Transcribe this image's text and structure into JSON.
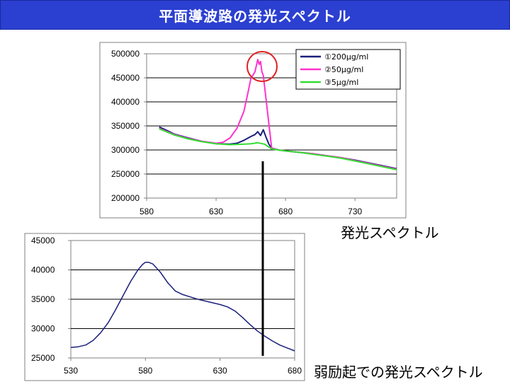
{
  "slide": {
    "title": "平面導波路の発光スペクトル",
    "caption_top": "発光スペクトル",
    "caption_bottom": "弱励起での発光スペクトル"
  },
  "colors": {
    "title_bg": "#2b3fd1",
    "series_200": "#1a1f7a",
    "series_50": "#ff33cc",
    "series_5": "#33dd33",
    "highlight_circle": "#e02020",
    "lower_line": "#1a1f7a"
  },
  "chart_data": [
    {
      "type": "line",
      "xlim": [
        580,
        760
      ],
      "ylim": [
        200000,
        500000
      ],
      "x_ticks": [
        "580",
        "630",
        "680",
        "730"
      ],
      "x_tick_values": [
        580,
        630,
        680,
        730
      ],
      "y_ticks": [
        "500000",
        "450000",
        "400000",
        "350000",
        "300000",
        "250000",
        "200000"
      ],
      "y_tick_values": [
        500000,
        450000,
        400000,
        350000,
        300000,
        250000,
        200000
      ],
      "grid": true,
      "legend_position": "top-right",
      "annotation": "red circle around peak at ~660",
      "series": [
        {
          "name": "①200μg/ml",
          "color_key": "series_200",
          "x": [
            589,
            595,
            600,
            610,
            620,
            630,
            640,
            645,
            650,
            655,
            658,
            660,
            662,
            664,
            665,
            666,
            668,
            670,
            675,
            680,
            690,
            700,
            710,
            720,
            730,
            740,
            750,
            760
          ],
          "y": [
            348000,
            340000,
            333000,
            325000,
            318000,
            313000,
            312000,
            314000,
            320000,
            328000,
            332000,
            338000,
            330000,
            342000,
            334000,
            326000,
            312000,
            304000,
            300000,
            298000,
            295000,
            292000,
            288000,
            284000,
            279000,
            273000,
            267000,
            261000
          ]
        },
        {
          "name": "②50μg/ml",
          "color_key": "series_50",
          "x": [
            589,
            600,
            610,
            620,
            630,
            635,
            640,
            645,
            650,
            653,
            655,
            658,
            660,
            661,
            662,
            663,
            664,
            665,
            667,
            670,
            675,
            680,
            690,
            700,
            710,
            720,
            730,
            740,
            750,
            760
          ],
          "y": [
            345000,
            332000,
            324000,
            318000,
            314000,
            316000,
            325000,
            345000,
            380000,
            420000,
            448000,
            463000,
            488000,
            478000,
            484000,
            462000,
            455000,
            430000,
            380000,
            304000,
            300000,
            298000,
            295000,
            292000,
            288000,
            284000,
            278000,
            272000,
            266000,
            260000
          ]
        },
        {
          "name": "③5μg/ml",
          "color_key": "series_5",
          "x": [
            589,
            600,
            610,
            620,
            630,
            640,
            650,
            655,
            660,
            665,
            668,
            670,
            680,
            690,
            700,
            710,
            720,
            730,
            740,
            750,
            760
          ],
          "y": [
            344000,
            331000,
            323000,
            317000,
            313000,
            311000,
            312000,
            313000,
            315000,
            312000,
            306000,
            302000,
            298000,
            295000,
            291000,
            287000,
            283000,
            277000,
            271000,
            265000,
            259000
          ]
        }
      ]
    },
    {
      "type": "line",
      "xlim": [
        530,
        680
      ],
      "ylim": [
        25000,
        45000
      ],
      "x_ticks": [
        "530",
        "580",
        "630",
        "680"
      ],
      "x_tick_values": [
        530,
        580,
        630,
        680
      ],
      "y_ticks": [
        "45000",
        "40000",
        "35000",
        "30000",
        "25000"
      ],
      "y_tick_values": [
        45000,
        40000,
        35000,
        30000,
        25000
      ],
      "grid": true,
      "series": [
        {
          "color_key": "lower_line",
          "x": [
            530,
            535,
            540,
            545,
            550,
            555,
            560,
            565,
            570,
            575,
            578,
            580,
            582,
            585,
            590,
            595,
            600,
            605,
            610,
            615,
            620,
            625,
            630,
            635,
            640,
            645,
            650,
            655,
            660,
            665,
            670,
            675,
            680
          ],
          "y": [
            26800,
            26900,
            27200,
            28000,
            29300,
            31000,
            33200,
            35600,
            38000,
            40000,
            40900,
            41300,
            41300,
            41000,
            39600,
            37800,
            36400,
            35800,
            35400,
            35000,
            34700,
            34400,
            34100,
            33700,
            33000,
            31900,
            30700,
            29600,
            28700,
            27900,
            27200,
            26700,
            26200
          ]
        }
      ]
    }
  ]
}
